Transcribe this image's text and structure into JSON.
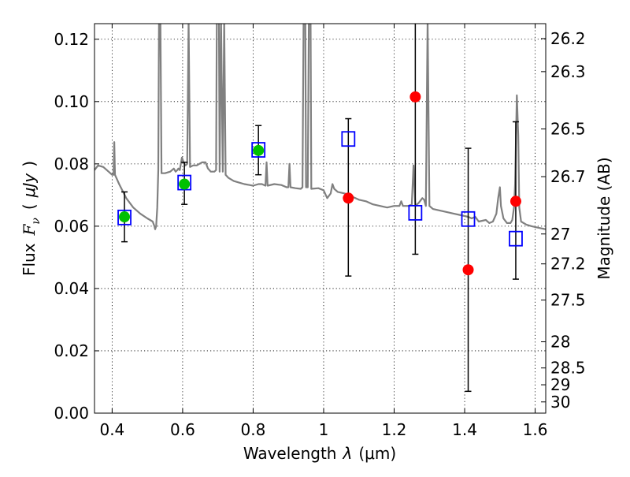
{
  "chart_data": {
    "type": "scatter",
    "xlabel_text": "Wavelength",
    "xlabel_symbol": "λ",
    "xlabel_unit": "(μm)",
    "ylabel_text": "Flux",
    "ylabel_symbol": "F",
    "ylabel_symbol_sub": "ν",
    "ylabel_unit_open": "(",
    "ylabel_unit": "μJy",
    "ylabel_unit_close": ")",
    "y2label": "Magnitude (AB)",
    "xlim": [
      0.35,
      1.63
    ],
    "ylim": [
      0.0,
      0.125
    ],
    "grid": true,
    "x_ticks": [
      0.4,
      0.6,
      0.8,
      1.0,
      1.2,
      1.4,
      1.6
    ],
    "x_tick_labels": [
      "0.4",
      "0.6",
      "0.8",
      "1",
      "1.2",
      "1.4",
      "1.6"
    ],
    "y_ticks": [
      0.0,
      0.02,
      0.04,
      0.06,
      0.08,
      0.1,
      0.12
    ],
    "y_tick_labels": [
      "0.00",
      "0.02",
      "0.04",
      "0.06",
      "0.08",
      "0.10",
      "0.12"
    ],
    "mag_ticks": [
      {
        "label": "26.2",
        "flux": 0.1202
      },
      {
        "label": "26.3",
        "flux": 0.1096
      },
      {
        "label": "26.5",
        "flux": 0.0912
      },
      {
        "label": "26.7",
        "flux": 0.0759
      },
      {
        "label": "27",
        "flux": 0.0575
      },
      {
        "label": "27.2",
        "flux": 0.0479
      },
      {
        "label": "27.5",
        "flux": 0.0363
      },
      {
        "label": "28",
        "flux": 0.0229
      },
      {
        "label": "28.5",
        "flux": 0.0145
      },
      {
        "label": "29",
        "flux": 0.0091
      },
      {
        "label": "30",
        "flux": 0.0036
      }
    ],
    "series": [
      {
        "kind": "model-spectrum",
        "color": "#808080",
        "points": [
          [
            0.35,
            0.078
          ],
          [
            0.36,
            0.0795
          ],
          [
            0.375,
            0.079
          ],
          [
            0.39,
            0.0775
          ],
          [
            0.4,
            0.0765
          ],
          [
            0.404,
            0.0765
          ],
          [
            0.406,
            0.087
          ],
          [
            0.408,
            0.0765
          ],
          [
            0.42,
            0.0735
          ],
          [
            0.44,
            0.069
          ],
          [
            0.46,
            0.066
          ],
          [
            0.48,
            0.064
          ],
          [
            0.5,
            0.0625
          ],
          [
            0.515,
            0.0615
          ],
          [
            0.52,
            0.06
          ],
          [
            0.522,
            0.059
          ],
          [
            0.525,
            0.06
          ],
          [
            0.528,
            0.066
          ],
          [
            0.531,
            0.078
          ],
          [
            0.533,
            0.126
          ],
          [
            0.537,
            0.126
          ],
          [
            0.54,
            0.077
          ],
          [
            0.55,
            0.077
          ],
          [
            0.565,
            0.0775
          ],
          [
            0.575,
            0.0785
          ],
          [
            0.58,
            0.0775
          ],
          [
            0.585,
            0.078
          ],
          [
            0.588,
            0.0785
          ],
          [
            0.592,
            0.078
          ],
          [
            0.598,
            0.082
          ],
          [
            0.603,
            0.0805
          ],
          [
            0.608,
            0.0795
          ],
          [
            0.613,
            0.08
          ],
          [
            0.617,
            0.126
          ],
          [
            0.621,
            0.079
          ],
          [
            0.63,
            0.0795
          ],
          [
            0.64,
            0.0795
          ],
          [
            0.655,
            0.0805
          ],
          [
            0.665,
            0.0805
          ],
          [
            0.672,
            0.0785
          ],
          [
            0.68,
            0.0775
          ],
          [
            0.69,
            0.0775
          ],
          [
            0.695,
            0.078
          ],
          [
            0.697,
            0.126
          ],
          [
            0.703,
            0.126
          ],
          [
            0.705,
            0.0775
          ],
          [
            0.709,
            0.126
          ],
          [
            0.714,
            0.0775
          ],
          [
            0.718,
            0.126
          ],
          [
            0.722,
            0.0765
          ],
          [
            0.73,
            0.0755
          ],
          [
            0.745,
            0.0745
          ],
          [
            0.76,
            0.074
          ],
          [
            0.775,
            0.0735
          ],
          [
            0.79,
            0.0732
          ],
          [
            0.8,
            0.073
          ],
          [
            0.815,
            0.0735
          ],
          [
            0.825,
            0.0735
          ],
          [
            0.835,
            0.073
          ],
          [
            0.838,
            0.0805
          ],
          [
            0.841,
            0.073
          ],
          [
            0.86,
            0.0735
          ],
          [
            0.88,
            0.0732
          ],
          [
            0.895,
            0.0725
          ],
          [
            0.9,
            0.0725
          ],
          [
            0.903,
            0.08
          ],
          [
            0.906,
            0.0725
          ],
          [
            0.92,
            0.0722
          ],
          [
            0.935,
            0.072
          ],
          [
            0.94,
            0.0725
          ],
          [
            0.943,
            0.126
          ],
          [
            0.948,
            0.126
          ],
          [
            0.95,
            0.0725
          ],
          [
            0.955,
            0.0725
          ],
          [
            0.958,
            0.126
          ],
          [
            0.963,
            0.126
          ],
          [
            0.965,
            0.072
          ],
          [
            0.985,
            0.0722
          ],
          [
            1.0,
            0.0715
          ],
          [
            1.01,
            0.069
          ],
          [
            1.02,
            0.0705
          ],
          [
            1.025,
            0.0735
          ],
          [
            1.03,
            0.072
          ],
          [
            1.04,
            0.071
          ],
          [
            1.06,
            0.0705
          ],
          [
            1.08,
            0.0695
          ],
          [
            1.1,
            0.0685
          ],
          [
            1.12,
            0.068
          ],
          [
            1.14,
            0.067
          ],
          [
            1.16,
            0.0665
          ],
          [
            1.18,
            0.066
          ],
          [
            1.2,
            0.0665
          ],
          [
            1.215,
            0.0665
          ],
          [
            1.22,
            0.068
          ],
          [
            1.225,
            0.0665
          ],
          [
            1.24,
            0.0665
          ],
          [
            1.25,
            0.067
          ],
          [
            1.255,
            0.0795
          ],
          [
            1.26,
            0.0665
          ],
          [
            1.27,
            0.0675
          ],
          [
            1.28,
            0.069
          ],
          [
            1.285,
            0.0685
          ],
          [
            1.29,
            0.0665
          ],
          [
            1.295,
            0.126
          ],
          [
            1.3,
            0.0665
          ],
          [
            1.31,
            0.0655
          ],
          [
            1.33,
            0.065
          ],
          [
            1.35,
            0.0645
          ],
          [
            1.37,
            0.064
          ],
          [
            1.39,
            0.0635
          ],
          [
            1.41,
            0.063
          ],
          [
            1.42,
            0.0625
          ],
          [
            1.43,
            0.063
          ],
          [
            1.44,
            0.0615
          ],
          [
            1.46,
            0.062
          ],
          [
            1.47,
            0.061
          ],
          [
            1.48,
            0.0615
          ],
          [
            1.49,
            0.064
          ],
          [
            1.495,
            0.069
          ],
          [
            1.5,
            0.0725
          ],
          [
            1.503,
            0.0665
          ],
          [
            1.51,
            0.0625
          ],
          [
            1.52,
            0.061
          ],
          [
            1.53,
            0.061
          ],
          [
            1.535,
            0.062
          ],
          [
            1.54,
            0.066
          ],
          [
            1.543,
            0.0735
          ],
          [
            1.548,
            0.102
          ],
          [
            1.552,
            0.089
          ],
          [
            1.555,
            0.066
          ],
          [
            1.56,
            0.0615
          ],
          [
            1.575,
            0.0605
          ],
          [
            1.59,
            0.06
          ],
          [
            1.61,
            0.0595
          ],
          [
            1.63,
            0.059
          ]
        ]
      },
      {
        "kind": "model-photometry",
        "marker": "open-square",
        "color": "#0000ff",
        "points": [
          [
            0.435,
            0.0628
          ],
          [
            0.605,
            0.074
          ],
          [
            0.815,
            0.0845
          ],
          [
            1.07,
            0.088
          ],
          [
            1.26,
            0.0643
          ],
          [
            1.41,
            0.0623
          ],
          [
            1.545,
            0.056
          ]
        ]
      },
      {
        "kind": "detections",
        "marker": "filled-circle",
        "color": "#00c000",
        "points": [
          {
            "x": 0.435,
            "y": 0.063,
            "err_lo": 0.055,
            "err_hi": 0.071
          },
          {
            "x": 0.605,
            "y": 0.0735,
            "err_lo": 0.067,
            "err_hi": 0.0805
          },
          {
            "x": 0.815,
            "y": 0.0843,
            "err_lo": 0.0765,
            "err_hi": 0.0923
          }
        ]
      },
      {
        "kind": "upper-measurements",
        "marker": "filled-circle",
        "color": "#ff0000",
        "points": [
          {
            "x": 1.07,
            "y": 0.069,
            "err_lo": 0.044,
            "err_hi": 0.0945
          },
          {
            "x": 1.26,
            "y": 0.1015,
            "err_lo": 0.051,
            "err_hi": 0.126
          },
          {
            "x": 1.41,
            "y": 0.046,
            "err_lo": 0.007,
            "err_hi": 0.085
          },
          {
            "x": 1.545,
            "y": 0.068,
            "err_lo": 0.043,
            "err_hi": 0.0935
          }
        ]
      }
    ]
  }
}
